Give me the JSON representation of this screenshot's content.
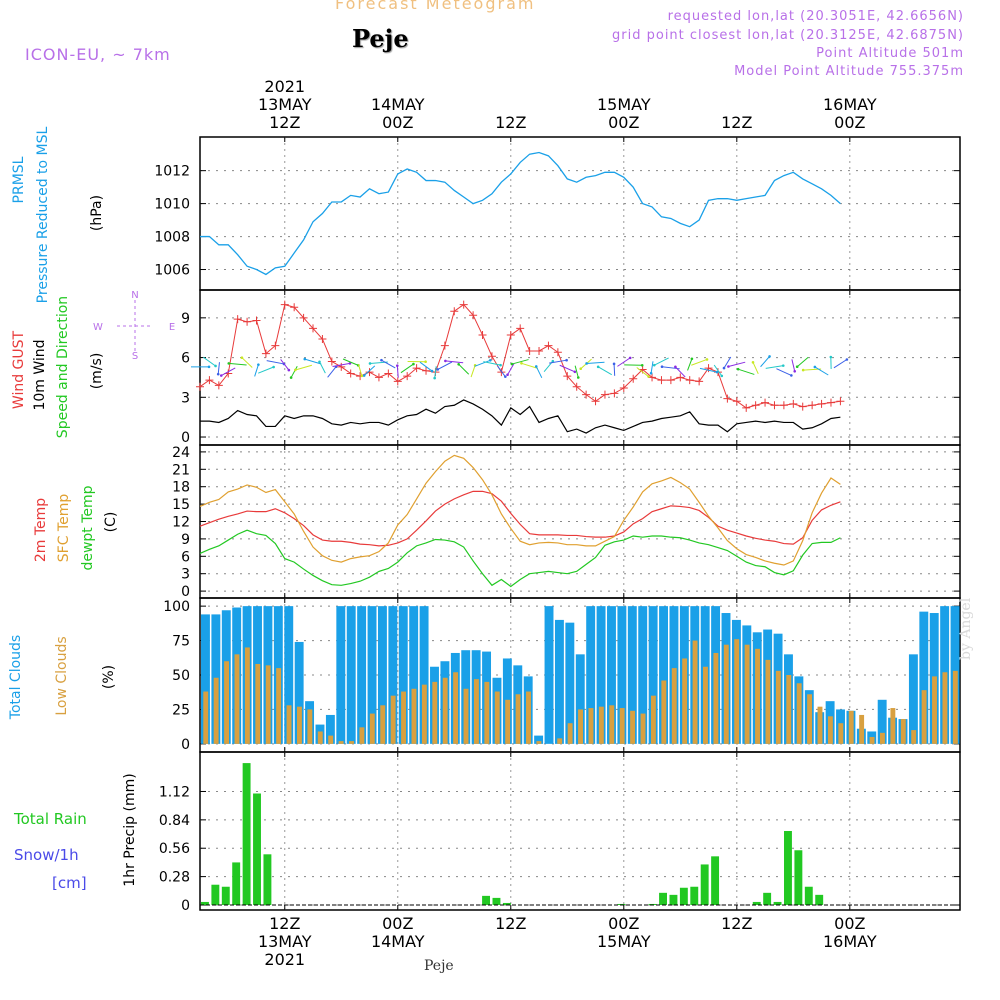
{
  "header": {
    "supertitle": "Forecast Meteogram",
    "location": "Peje",
    "model": "ICON-EU, ~ 7km",
    "requested": "requested lon,lat (20.3051E, 42.6656N)",
    "grid": "grid point closest lon,lat (20.3125E, 42.6875N)",
    "point_alt": "Point Altitude 501m",
    "model_alt": "Model Point Altitude 755.375m",
    "credit": "by Angel",
    "footer": "Peje"
  },
  "colors": {
    "pressure": "#1aa0e8",
    "gust": "#e83a3a",
    "wind": "#000000",
    "sfc_temp": "#e0a030",
    "dewpoint": "#22c822",
    "total_clouds": "#1aa0e8",
    "low_clouds": "#d8a040",
    "rain": "#22c822",
    "snow": "#4a4ae8",
    "purple": "#b870e8"
  },
  "time_axis": {
    "top_ticks": [
      {
        "time": "2021-05-13T12Z",
        "lines": [
          "2021",
          "13MAY",
          "12Z"
        ]
      },
      {
        "time": "2021-05-14T00Z",
        "lines": [
          "14MAY",
          "00Z"
        ]
      },
      {
        "time": "2021-05-14T12Z",
        "lines": [
          "12Z"
        ]
      },
      {
        "time": "2021-05-15T00Z",
        "lines": [
          "15MAY",
          "00Z"
        ]
      },
      {
        "time": "2021-05-15T12Z",
        "lines": [
          "12Z"
        ]
      },
      {
        "time": "2021-05-16T00Z",
        "lines": [
          "16MAY",
          "00Z"
        ]
      }
    ],
    "bottom_ticks": [
      {
        "time": "2021-05-13T12Z",
        "lines": [
          "12Z",
          "13MAY",
          "2021"
        ]
      },
      {
        "time": "2021-05-14T00Z",
        "lines": [
          "00Z",
          "14MAY"
        ]
      },
      {
        "time": "2021-05-14T12Z",
        "lines": [
          "12Z"
        ]
      },
      {
        "time": "2021-05-15T00Z",
        "lines": [
          "00Z",
          "15MAY"
        ]
      },
      {
        "time": "2021-05-15T12Z",
        "lines": [
          "12Z"
        ]
      },
      {
        "time": "2021-05-16T00Z",
        "lines": [
          "00Z",
          "16MAY"
        ]
      }
    ]
  },
  "chart_data": [
    {
      "type": "line",
      "ylabels": [
        "PRMSL",
        "Pressure Reduced to MSL",
        "(hPa)"
      ],
      "ylim": [
        1005,
        1013.8
      ],
      "yticks": [
        1006,
        1008,
        1010,
        1012
      ],
      "grid": true,
      "x_start": "2021-05-13T03Z",
      "x_step": "1h",
      "series": [
        {
          "values": [
            1008.0,
            1008.0,
            1007.5,
            1007.5,
            1006.9,
            1006.2,
            1006.0,
            1005.7,
            1006.1,
            1006.2,
            1007.0,
            1007.8,
            1008.9,
            1009.4,
            1010.1,
            1010.1,
            1010.5,
            1010.4,
            1010.9,
            1010.6,
            1010.7,
            1011.8,
            1012.1,
            1011.9,
            1011.4,
            1011.4,
            1011.3,
            1010.8,
            1010.4,
            1010.0,
            1010.2,
            1010.6,
            1011.3,
            1011.8,
            1012.5,
            1013.0,
            1013.1,
            1012.9,
            1012.3,
            1011.5,
            1011.3,
            1011.6,
            1011.7,
            1011.9,
            1011.9,
            1011.6,
            1011.0,
            1010.0,
            1009.8,
            1009.2,
            1009.1,
            1008.8,
            1008.6,
            1009.0,
            1010.2,
            1010.3,
            1010.3,
            1010.2,
            1010.3,
            1010.4,
            1010.5,
            1011.4,
            1011.7,
            1011.9,
            1011.5,
            1011.2,
            1010.9,
            1010.5,
            1010.0
          ]
        }
      ]
    },
    {
      "type": "line",
      "ylabels": [
        "Wind GUST",
        "10m Wind",
        "Speed and Direction",
        "(m/s)"
      ],
      "compass": [
        "N",
        "S",
        "W",
        "E"
      ],
      "ylim": [
        -0.3,
        10.8
      ],
      "yticks": [
        0,
        3,
        6,
        9
      ],
      "grid": true,
      "x_start": "2021-05-13T03Z",
      "x_step": "1h",
      "series": [
        {
          "name": "Wind GUST",
          "values": [
            3.8,
            4.3,
            3.9,
            4.8,
            8.9,
            8.7,
            8.8,
            6.3,
            6.9,
            10.0,
            9.8,
            9.0,
            8.2,
            7.4,
            5.7,
            5.3,
            4.8,
            4.6,
            4.9,
            4.5,
            4.8,
            4.2,
            4.6,
            5.2,
            5.0,
            4.9,
            6.9,
            9.5,
            10.0,
            9.2,
            7.7,
            6.1,
            4.9,
            7.7,
            8.2,
            6.5,
            6.5,
            6.9,
            6.4,
            4.6,
            3.8,
            3.2,
            2.7,
            3.2,
            3.3,
            3.7,
            4.4,
            5.1,
            4.5,
            4.3,
            4.3,
            4.5,
            4.3,
            4.2,
            5.2,
            4.9,
            2.9,
            2.7,
            2.2,
            2.4,
            2.6,
            2.4,
            2.4,
            2.5,
            2.3,
            2.4,
            2.5,
            2.6,
            2.7
          ]
        },
        {
          "name": "10m Wind",
          "values": [
            1.2,
            1.2,
            1.1,
            1.4,
            2.0,
            1.7,
            1.6,
            0.8,
            0.8,
            1.6,
            1.4,
            1.6,
            1.6,
            1.4,
            1.0,
            0.9,
            1.1,
            1.0,
            1.1,
            1.1,
            0.9,
            1.3,
            1.6,
            1.7,
            2.1,
            1.8,
            2.3,
            2.4,
            2.8,
            2.5,
            2.1,
            1.6,
            0.9,
            2.2,
            1.7,
            2.3,
            1.1,
            1.4,
            1.6,
            0.4,
            0.6,
            0.3,
            0.7,
            0.9,
            0.7,
            0.5,
            0.8,
            1.1,
            1.2,
            1.4,
            1.5,
            1.6,
            1.9,
            1.0,
            0.9,
            0.9,
            0.4,
            1.0,
            1.1,
            1.2,
            1.1,
            1.2,
            1.1,
            1.1,
            0.6,
            0.7,
            1.0,
            1.4,
            1.5
          ]
        }
      ]
    },
    {
      "type": "line",
      "ylabels": [
        "2m Temp",
        "SFC Temp",
        "dewpt Temp",
        "(C)"
      ],
      "ylim": [
        -0.5,
        24.5
      ],
      "yticks": [
        0,
        3,
        6,
        9,
        12,
        15,
        18,
        21,
        24
      ],
      "grid": true,
      "x_start": "2021-05-13T03Z",
      "x_step": "1h",
      "series": [
        {
          "name": "2m Temp",
          "values": [
            11.2,
            11.8,
            12.4,
            12.9,
            13.3,
            13.8,
            13.7,
            13.7,
            14.2,
            13.5,
            12.5,
            11.3,
            9.7,
            8.8,
            8.6,
            8.6,
            8.4,
            8.1,
            8.0,
            7.8,
            7.9,
            8.3,
            9.0,
            10.5,
            12.1,
            13.8,
            15.0,
            15.9,
            16.6,
            17.2,
            17.2,
            16.8,
            15.5,
            13.4,
            11.5,
            9.9,
            9.7,
            9.7,
            9.7,
            9.6,
            9.6,
            9.4,
            9.3,
            9.3,
            9.5,
            10.2,
            11.6,
            12.5,
            13.7,
            14.2,
            14.7,
            14.6,
            14.4,
            13.9,
            12.7,
            11.2,
            10.5,
            10.0,
            9.5,
            9.1,
            8.8,
            8.6,
            8.2,
            8.1,
            9.2,
            12.2,
            14.0,
            14.8,
            15.4
          ]
        },
        {
          "name": "SFC Temp",
          "values": [
            14.6,
            15.3,
            15.8,
            17.1,
            17.6,
            18.3,
            17.9,
            17.0,
            17.5,
            15.4,
            13.3,
            10.3,
            7.6,
            6.1,
            5.3,
            5.0,
            5.6,
            5.9,
            6.1,
            6.8,
            8.3,
            11.4,
            13.2,
            15.9,
            18.6,
            20.6,
            22.4,
            23.4,
            22.9,
            21.3,
            19.2,
            16.6,
            13.3,
            10.8,
            8.6,
            8.0,
            8.3,
            8.4,
            8.3,
            8.0,
            8.0,
            7.8,
            7.8,
            8.6,
            9.4,
            12.2,
            14.5,
            17.1,
            18.5,
            19.0,
            19.6,
            18.7,
            17.6,
            15.3,
            12.9,
            10.9,
            8.7,
            7.3,
            6.3,
            5.8,
            5.2,
            4.8,
            4.5,
            5.2,
            8.7,
            13.5,
            16.9,
            19.5,
            18.4
          ]
        },
        {
          "name": "dewpt Temp",
          "values": [
            6.5,
            7.2,
            7.8,
            8.8,
            9.8,
            10.5,
            9.9,
            9.6,
            8.2,
            5.6,
            5.0,
            3.8,
            2.7,
            1.8,
            1.1,
            1.0,
            1.3,
            1.7,
            2.4,
            3.4,
            3.9,
            5.0,
            6.6,
            7.8,
            8.3,
            8.9,
            8.8,
            8.5,
            7.6,
            5.2,
            3.0,
            1.0,
            2.0,
            0.8,
            2.0,
            3.0,
            3.2,
            3.4,
            3.2,
            3.0,
            3.4,
            4.6,
            5.8,
            7.9,
            8.5,
            8.8,
            9.5,
            9.3,
            9.5,
            9.5,
            9.3,
            9.2,
            8.8,
            8.3,
            8.0,
            7.5,
            7.0,
            6.0,
            5.0,
            4.4,
            4.2,
            3.2,
            2.8,
            3.5,
            6.2,
            8.2,
            8.4,
            8.4,
            9.2
          ]
        }
      ]
    },
    {
      "type": "bar",
      "ylabels": [
        "Total Clouds",
        "Low Clouds",
        "(%)"
      ],
      "ylim": [
        -3,
        103
      ],
      "yticks": [
        0,
        25,
        50,
        75,
        100
      ],
      "grid": true,
      "x_start": "2021-05-13T03Z",
      "x_step": "1h",
      "series": [
        {
          "name": "Total Clouds",
          "values": [
            94,
            94,
            97,
            99,
            100,
            100,
            100,
            100,
            100,
            74,
            31,
            14,
            21,
            100,
            100,
            100,
            100,
            100,
            100,
            100,
            100,
            100,
            56,
            60,
            66,
            68,
            68,
            67,
            48,
            62,
            57,
            49,
            6,
            100,
            90,
            88,
            65,
            100,
            100,
            100,
            100,
            100,
            100,
            100,
            100,
            100,
            100,
            100,
            100,
            100,
            95,
            90,
            86,
            81,
            83,
            80,
            65,
            49,
            39,
            23,
            31,
            25,
            24,
            11,
            9,
            32,
            19,
            18,
            65,
            96,
            95,
            100,
            100
          ]
        },
        {
          "name": "Low Clouds",
          "values": [
            38,
            48,
            60,
            65,
            70,
            58,
            57,
            55,
            28,
            27,
            25,
            9,
            6,
            2,
            2,
            12,
            22,
            28,
            35,
            38,
            40,
            43,
            45,
            48,
            52,
            40,
            47,
            45,
            38,
            32,
            36,
            38,
            2,
            0,
            4,
            15,
            25,
            26,
            27,
            28,
            26,
            24,
            22,
            35,
            46,
            55,
            62,
            75,
            56,
            66,
            72,
            76,
            72,
            69,
            61,
            53,
            50,
            44,
            36,
            27,
            20,
            15,
            24,
            21,
            5,
            8,
            26,
            18,
            10,
            39,
            49,
            52,
            53
          ]
        }
      ]
    },
    {
      "type": "bar",
      "ylabels": [
        "1hr Precip (mm)"
      ],
      "ylim": [
        -0.01,
        1.47
      ],
      "yticks": [
        0,
        0.28,
        0.56,
        0.84,
        1.12
      ],
      "grid": true,
      "x_start": "2021-05-13T03Z",
      "x_step": "1h",
      "series": [
        {
          "name": "Total Rain",
          "values": [
            0.03,
            0.2,
            0.18,
            0.42,
            1.4,
            1.1,
            0.5,
            0,
            0,
            0,
            0,
            0,
            0,
            0,
            0,
            0,
            0,
            0,
            0,
            0,
            0,
            0,
            0,
            0,
            0,
            0,
            0,
            0.09,
            0.07,
            0.02,
            0,
            0,
            0,
            0,
            0,
            0,
            0,
            0,
            0,
            0,
            0.01,
            0,
            0,
            0.01,
            0.12,
            0.1,
            0.17,
            0.18,
            0.4,
            0.48,
            0,
            0,
            0,
            0.03,
            0.12,
            0.03,
            0.73,
            0.54,
            0.18,
            0.1,
            0,
            0,
            0,
            0,
            0,
            0,
            0,
            0,
            0,
            0,
            0,
            0,
            0
          ]
        },
        {
          "name": "Snow/1h",
          "values": []
        }
      ]
    }
  ],
  "panel_side_labels": {
    "precip_left": [
      "Total  Rain",
      "Snow/1h",
      "[cm]"
    ]
  }
}
